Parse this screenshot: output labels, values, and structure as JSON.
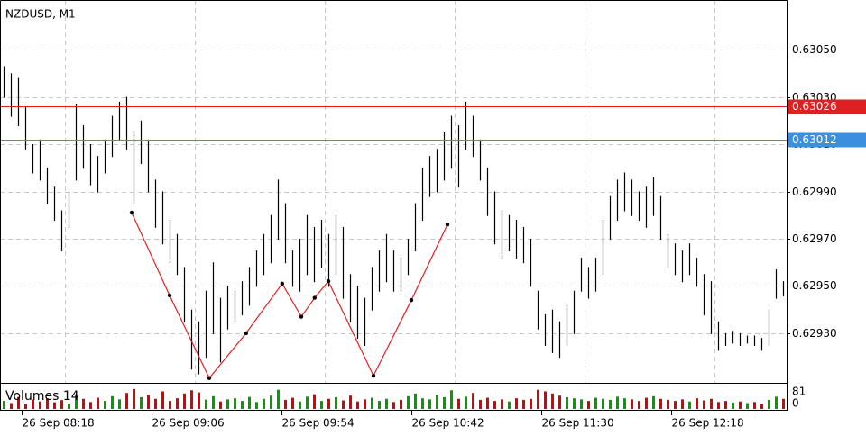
{
  "chart_data": {
    "type": "ohlc",
    "title": "NZDUSD, M1",
    "ylim": [
      0.62909,
      0.63071
    ],
    "yticks": [
      {
        "value": 0.6305,
        "label": "0.63050"
      },
      {
        "value": 0.6303,
        "label": "0.63030"
      },
      {
        "value": 0.6301,
        "label": "0.63010"
      },
      {
        "value": 0.6299,
        "label": "0.62990"
      },
      {
        "value": 0.6297,
        "label": "0.62970"
      },
      {
        "value": 0.6295,
        "label": "0.62950"
      },
      {
        "value": 0.6293,
        "label": "0.62930"
      }
    ],
    "xlim": [
      -0.5,
      108.5
    ],
    "xticks": [
      {
        "value": 2.5,
        "label": "26 Sep 08:18"
      },
      {
        "value": 20.5,
        "label": "26 Sep 09:06"
      },
      {
        "value": 38.5,
        "label": "26 Sep 09:54"
      },
      {
        "value": 56.5,
        "label": "26 Sep 10:42"
      },
      {
        "value": 74.5,
        "label": "26 Sep 11:30"
      },
      {
        "value": 92.5,
        "label": "26 Sep 12:18"
      }
    ],
    "grid": true,
    "bar_color": "#000000",
    "bars": {
      "high": [
        0.63043,
        0.6304,
        0.63038,
        0.63026,
        0.6301,
        0.63012,
        0.63,
        0.62992,
        0.62982,
        0.6299,
        0.63027,
        0.63018,
        0.6301,
        0.63005,
        0.63012,
        0.63022,
        0.63028,
        0.6303,
        0.63015,
        0.6302,
        0.63012,
        0.62995,
        0.6299,
        0.62978,
        0.62972,
        0.62958,
        0.6294,
        0.62935,
        0.62948,
        0.6296,
        0.62945,
        0.6295,
        0.62948,
        0.62952,
        0.62958,
        0.62965,
        0.62972,
        0.6298,
        0.62995,
        0.62985,
        0.62965,
        0.6297,
        0.6298,
        0.62975,
        0.62978,
        0.62972,
        0.6298,
        0.62975,
        0.62955,
        0.6295,
        0.62945,
        0.62958,
        0.62965,
        0.62972,
        0.62965,
        0.62962,
        0.6297,
        0.62985,
        0.63,
        0.63005,
        0.63008,
        0.63015,
        0.63022,
        0.63018,
        0.63028,
        0.63022,
        0.63012,
        0.63,
        0.6299,
        0.62982,
        0.6298,
        0.62978,
        0.62975,
        0.6297,
        0.62948,
        0.62938,
        0.6294,
        0.62935,
        0.62942,
        0.62948,
        0.62962,
        0.62958,
        0.62962,
        0.62978,
        0.62988,
        0.62995,
        0.62998,
        0.62995,
        0.6299,
        0.62992,
        0.62996,
        0.62988,
        0.62972,
        0.62968,
        0.62965,
        0.62968,
        0.62962,
        0.62955,
        0.62952,
        0.62935,
        0.6293,
        0.62931,
        0.6293,
        0.62929,
        0.62929,
        0.62928,
        0.6294,
        0.62957,
        0.62952
      ],
      "low": [
        0.6303,
        0.63022,
        0.63018,
        0.63008,
        0.62998,
        0.62995,
        0.62985,
        0.62978,
        0.62965,
        0.62975,
        0.62995,
        0.63,
        0.62993,
        0.6299,
        0.62998,
        0.63005,
        0.63012,
        0.63008,
        0.62985,
        0.63002,
        0.6299,
        0.62975,
        0.62968,
        0.6296,
        0.62955,
        0.62935,
        0.62915,
        0.62913,
        0.6292,
        0.6293,
        0.62918,
        0.62932,
        0.62935,
        0.62938,
        0.62942,
        0.6295,
        0.62955,
        0.6296,
        0.6297,
        0.6296,
        0.6295,
        0.62948,
        0.62955,
        0.62952,
        0.62958,
        0.6295,
        0.62955,
        0.62945,
        0.62935,
        0.62928,
        0.62925,
        0.6294,
        0.62948,
        0.62952,
        0.62948,
        0.62948,
        0.62955,
        0.62965,
        0.62978,
        0.62988,
        0.6299,
        0.62995,
        0.63,
        0.62992,
        0.63008,
        0.63005,
        0.62995,
        0.6298,
        0.62968,
        0.62962,
        0.62965,
        0.62962,
        0.6296,
        0.6295,
        0.62932,
        0.62925,
        0.62922,
        0.6292,
        0.62925,
        0.6293,
        0.62948,
        0.62945,
        0.62948,
        0.62955,
        0.6297,
        0.62978,
        0.62982,
        0.6298,
        0.62978,
        0.62975,
        0.6298,
        0.6297,
        0.62958,
        0.62955,
        0.62952,
        0.62955,
        0.6295,
        0.62938,
        0.6293,
        0.62923,
        0.62925,
        0.62926,
        0.62925,
        0.62926,
        0.62925,
        0.62923,
        0.62925,
        0.62945,
        0.62946
      ]
    },
    "hlines": [
      {
        "value": 0.63026,
        "color": "#e02020"
      },
      {
        "value": 0.63012,
        "color": "#3a8fe0"
      }
    ],
    "zigzag": {
      "color": "#e02020",
      "x": [
        17.75,
        23,
        28.5,
        33.6,
        38.6,
        41.25,
        43.1,
        45,
        51.25,
        56.5,
        61.5
      ],
      "values": [
        0.62981,
        0.62946,
        0.62911,
        0.6293,
        0.62951,
        0.62937,
        0.62945,
        0.62952,
        0.62912,
        0.62944,
        0.62976
      ]
    },
    "volume": {
      "title": "Volumes 14",
      "ylim": [
        0,
        81
      ],
      "yticks": [
        81,
        0
      ],
      "up_color": "#00a000",
      "down_color": "#e00000",
      "values": [
        30,
        22,
        45,
        18,
        35,
        28,
        40,
        25,
        33,
        20,
        55,
        38,
        26,
        42,
        30,
        48,
        36,
        60,
        75,
        44,
        52,
        38,
        66,
        30,
        40,
        58,
        70,
        62,
        35,
        48,
        28,
        36,
        40,
        30,
        45,
        26,
        38,
        50,
        72,
        34,
        42,
        28,
        46,
        55,
        30,
        38,
        44,
        32,
        50,
        28,
        36,
        42,
        30,
        38,
        26,
        34,
        48,
        58,
        40,
        36,
        52,
        44,
        70,
        38,
        46,
        60,
        34,
        42,
        30,
        36,
        28,
        40,
        34,
        38,
        72,
        66,
        58,
        50,
        44,
        40,
        36,
        30,
        42,
        38,
        34,
        46,
        40,
        36,
        30,
        42,
        48,
        38,
        34,
        30,
        36,
        28,
        40,
        32,
        38,
        26,
        30,
        24,
        28,
        22,
        26,
        20,
        34,
        46,
        38
      ]
    }
  }
}
